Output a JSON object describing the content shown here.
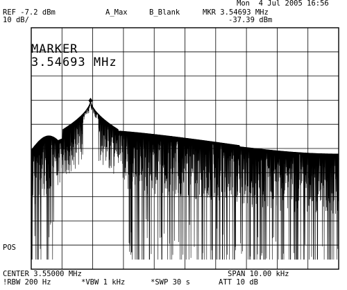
{
  "status": {
    "date": "Mon  4 Jul 2005 16:56",
    "ref_level": "REF -7.2 dBm",
    "scale": "10 dB/",
    "trace_a": "A_Max",
    "trace_b": "B_Blank",
    "marker_readout": "MKR 3.54693 MHz",
    "marker_amplitude": "-37.39 dBm"
  },
  "marker_box": {
    "label": "MARKER",
    "frequency": "3.54693 MHz"
  },
  "left_label": "POS",
  "footer": {
    "center": "CENTER 3.55000 MHz",
    "span": "SPAN 10.00 kHz",
    "rbw": "!RBW 200 Hz",
    "vbw": "*VBW 1 kHz",
    "sweep": "*SWP 30 s",
    "attenuation": "ATT 10 dB"
  },
  "chart_data": {
    "type": "line",
    "x_range_mhz": [
      3.545,
      3.555
    ],
    "y_range_dbm": [
      -107.2,
      -7.2
    ],
    "grid_divisions": {
      "x": 10,
      "y": 10
    },
    "grid": true,
    "marker": {
      "x_mhz": 3.54693,
      "y_dbm": -37.39
    },
    "envelope": {
      "x_mhz": [
        3.545,
        3.5455,
        3.546,
        3.5465,
        3.5469,
        3.5472,
        3.54693,
        3.5467,
        3.5464,
        3.5462,
        3.546,
        3.5466,
        3.5473,
        3.548,
        3.5485,
        3.549,
        3.5495,
        3.555
      ],
      "y_dbm": [
        -58,
        -55.5,
        -53,
        -52,
        -49.5,
        -47.5,
        -37.4,
        -40.5,
        -44,
        -47,
        -50.5,
        -51.5,
        -53,
        -55,
        -55.7,
        -56.6,
        -58.5,
        -58.5
      ]
    }
  }
}
